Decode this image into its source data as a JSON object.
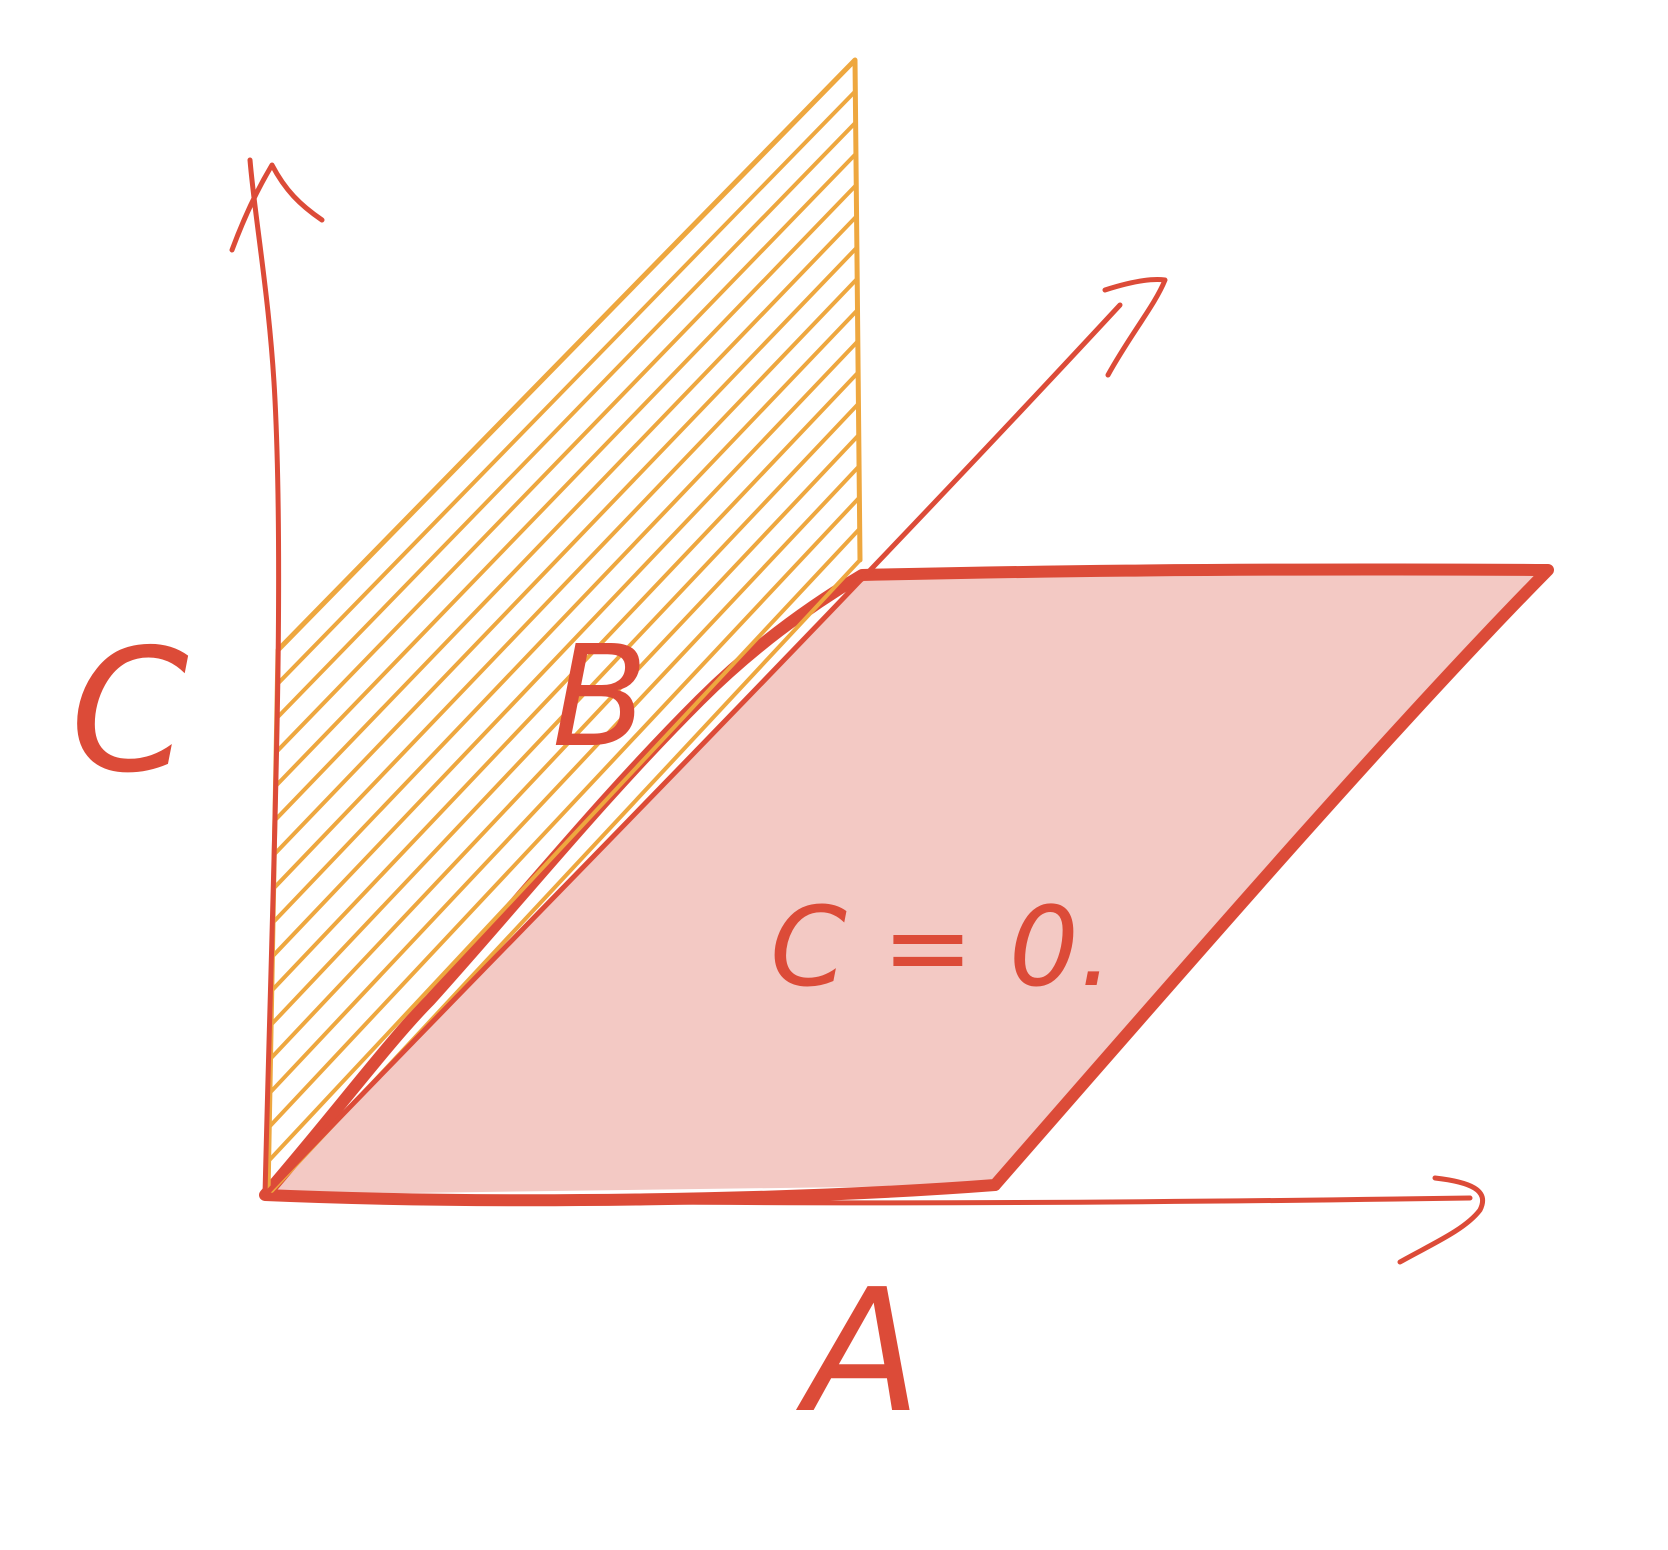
{
  "colors": {
    "axis": "#dc4b38",
    "plane_fill": "#f3c9c4",
    "plane_edge": "#dc4b38",
    "hatch": "#eea73f",
    "text": "#dc4b38"
  },
  "labels": {
    "vertical_axis": "C",
    "horizontal_axis": "A",
    "hatched_plane": "B",
    "filled_plane": "C = 0."
  }
}
